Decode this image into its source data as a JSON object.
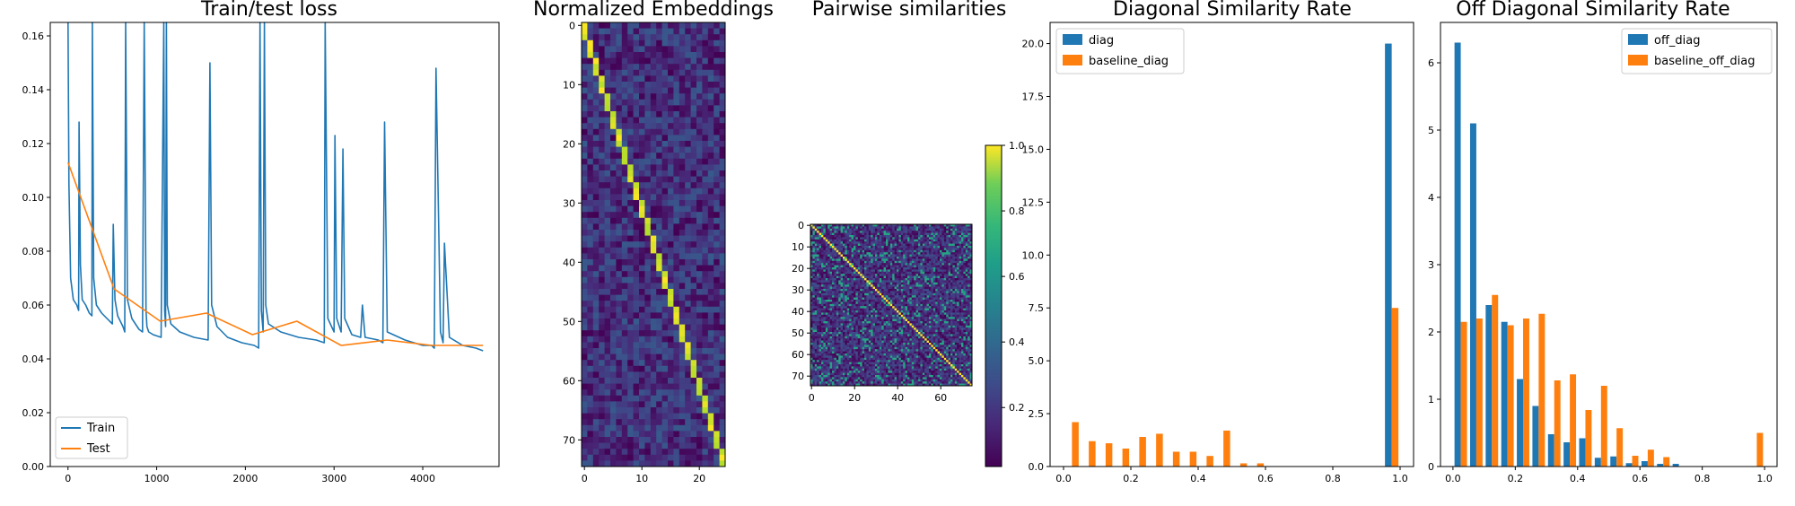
{
  "colors": {
    "blue": "#1f77b4",
    "orange": "#ff7f0e",
    "viridis_low": "#440154",
    "viridis_high": "#fde725"
  },
  "chart_data": [
    {
      "type": "line",
      "title": "Train/test loss",
      "xlabel": "",
      "ylabel": "",
      "xlim": [
        -200,
        4860
      ],
      "ylim": [
        0.0,
        0.165
      ],
      "xticks": [
        "0",
        "1000",
        "2000",
        "3000",
        "4000"
      ],
      "yticks": [
        "0.00",
        "0.02",
        "0.04",
        "0.06",
        "0.08",
        "0.10",
        "0.12",
        "0.14",
        "0.16"
      ],
      "legend_position": "lower-left",
      "series": [
        {
          "name": "Train",
          "color": "#1f77b4",
          "x": [
            0,
            10,
            30,
            60,
            100,
            120,
            125,
            140,
            160,
            200,
            240,
            270,
            275,
            290,
            320,
            380,
            440,
            500,
            510,
            530,
            560,
            620,
            640,
            650,
            670,
            720,
            800,
            840,
            860,
            880,
            890,
            910,
            960,
            1050,
            1080,
            1090,
            1100,
            1110,
            1120,
            1160,
            1260,
            1420,
            1580,
            1600,
            1620,
            1680,
            1800,
            1960,
            2100,
            2150,
            2165,
            2180,
            2200,
            2215,
            2230,
            2260,
            2400,
            2600,
            2800,
            2890,
            2900,
            2930,
            3000,
            3010,
            3030,
            3080,
            3100,
            3120,
            3200,
            3300,
            3320,
            3350,
            3500,
            3550,
            3570,
            3600,
            3800,
            4000,
            4100,
            4130,
            4150,
            4200,
            4230,
            4245,
            4300,
            4450,
            4600,
            4680
          ],
          "y": [
            0.165,
            0.105,
            0.07,
            0.062,
            0.06,
            0.058,
            0.128,
            0.075,
            0.062,
            0.06,
            0.057,
            0.056,
            0.165,
            0.07,
            0.06,
            0.057,
            0.055,
            0.053,
            0.09,
            0.062,
            0.056,
            0.052,
            0.05,
            0.165,
            0.062,
            0.055,
            0.051,
            0.05,
            0.165,
            0.058,
            0.052,
            0.05,
            0.049,
            0.048,
            0.165,
            0.058,
            0.052,
            0.165,
            0.06,
            0.053,
            0.05,
            0.048,
            0.047,
            0.15,
            0.06,
            0.052,
            0.048,
            0.046,
            0.045,
            0.044,
            0.165,
            0.058,
            0.05,
            0.165,
            0.06,
            0.053,
            0.05,
            0.048,
            0.047,
            0.046,
            0.165,
            0.055,
            0.05,
            0.123,
            0.055,
            0.05,
            0.118,
            0.055,
            0.049,
            0.048,
            0.06,
            0.048,
            0.047,
            0.046,
            0.128,
            0.05,
            0.047,
            0.045,
            0.045,
            0.044,
            0.148,
            0.05,
            0.046,
            0.083,
            0.048,
            0.045,
            0.044,
            0.043
          ]
        },
        {
          "name": "Test",
          "color": "#ff7f0e",
          "x": [
            0,
            520,
            1040,
            1560,
            2080,
            2580,
            3080,
            3600,
            4100,
            4680
          ],
          "y": [
            0.113,
            0.066,
            0.054,
            0.057,
            0.049,
            0.054,
            0.045,
            0.047,
            0.045,
            0.045
          ]
        }
      ]
    },
    {
      "type": "heatmap",
      "title": "Normalized Embeddings",
      "xticks": [
        "0",
        "10",
        "20"
      ],
      "yticks": [
        "0",
        "10",
        "20",
        "30",
        "40",
        "50",
        "60",
        "70"
      ],
      "rows": 75,
      "cols": 25,
      "diagonal_peak_col_per_row": "one third of the row index",
      "value_range": [
        0,
        1
      ],
      "colormap": "viridis"
    },
    {
      "type": "heatmap",
      "title": "Pairwise similarities",
      "xticks": [
        "0",
        "20",
        "40",
        "60"
      ],
      "yticks": [
        "0",
        "10",
        "20",
        "30",
        "40",
        "50",
        "60",
        "70"
      ],
      "rows": 75,
      "cols": 75,
      "diagonal_value": 1.0,
      "colorbar_ticks": [
        "0.2",
        "0.4",
        "0.6",
        "0.8",
        "1.0"
      ],
      "colorbar_range": [
        0.02,
        1.0
      ],
      "colormap": "viridis"
    },
    {
      "type": "bar",
      "title": "Diagonal Similarity Rate",
      "xlim": [
        -0.04,
        1.04
      ],
      "ylim": [
        0,
        21
      ],
      "xticks": [
        "0.0",
        "0.2",
        "0.4",
        "0.6",
        "0.8",
        "1.0"
      ],
      "yticks": [
        "0.0",
        "2.5",
        "5.0",
        "7.5",
        "10.0",
        "12.5",
        "15.0",
        "17.5",
        "20.0"
      ],
      "legend_position": "top-left",
      "bin_centers": [
        0.025,
        0.075,
        0.125,
        0.175,
        0.225,
        0.275,
        0.325,
        0.375,
        0.425,
        0.475,
        0.525,
        0.575,
        0.625,
        0.675,
        0.725,
        0.775,
        0.825,
        0.875,
        0.925,
        0.975
      ],
      "bar_width": 0.02,
      "series": [
        {
          "name": "diag",
          "color": "#1f77b4",
          "values": [
            0,
            0,
            0,
            0,
            0,
            0,
            0,
            0,
            0,
            0,
            0,
            0,
            0,
            0,
            0,
            0,
            0,
            0,
            0,
            20.0
          ]
        },
        {
          "name": "baseline_diag",
          "color": "#ff7f0e",
          "values": [
            2.1,
            1.2,
            1.1,
            0.85,
            1.4,
            1.55,
            0.7,
            0.7,
            0.5,
            1.7,
            0.15,
            0.15,
            0,
            0,
            0,
            0,
            0,
            0,
            0,
            7.5
          ]
        }
      ]
    },
    {
      "type": "bar",
      "title": "Off Diagonal Similarity Rate",
      "xlim": [
        -0.04,
        1.04
      ],
      "ylim": [
        0,
        6.6
      ],
      "xticks": [
        "0.0",
        "0.2",
        "0.4",
        "0.6",
        "0.8",
        "1.0"
      ],
      "yticks": [
        "0",
        "1",
        "2",
        "3",
        "4",
        "5",
        "6"
      ],
      "legend_position": "top-right",
      "bin_centers": [
        0.025,
        0.075,
        0.125,
        0.175,
        0.225,
        0.275,
        0.325,
        0.375,
        0.425,
        0.475,
        0.525,
        0.575,
        0.625,
        0.675,
        0.725,
        0.775,
        0.825,
        0.875,
        0.925,
        0.975
      ],
      "bar_width": 0.02,
      "series": [
        {
          "name": "off_diag",
          "color": "#1f77b4",
          "values": [
            6.3,
            5.1,
            2.4,
            2.15,
            1.3,
            0.9,
            0.48,
            0.36,
            0.42,
            0.13,
            0.15,
            0.05,
            0.08,
            0.04,
            0.04,
            0,
            0,
            0,
            0,
            0
          ]
        },
        {
          "name": "baseline_off_diag",
          "color": "#ff7f0e",
          "values": [
            2.15,
            2.2,
            2.55,
            2.1,
            2.2,
            2.27,
            1.28,
            1.37,
            0.84,
            1.2,
            0.57,
            0.16,
            0.25,
            0.14,
            0,
            0,
            0,
            0,
            0,
            0.5
          ]
        }
      ]
    }
  ]
}
